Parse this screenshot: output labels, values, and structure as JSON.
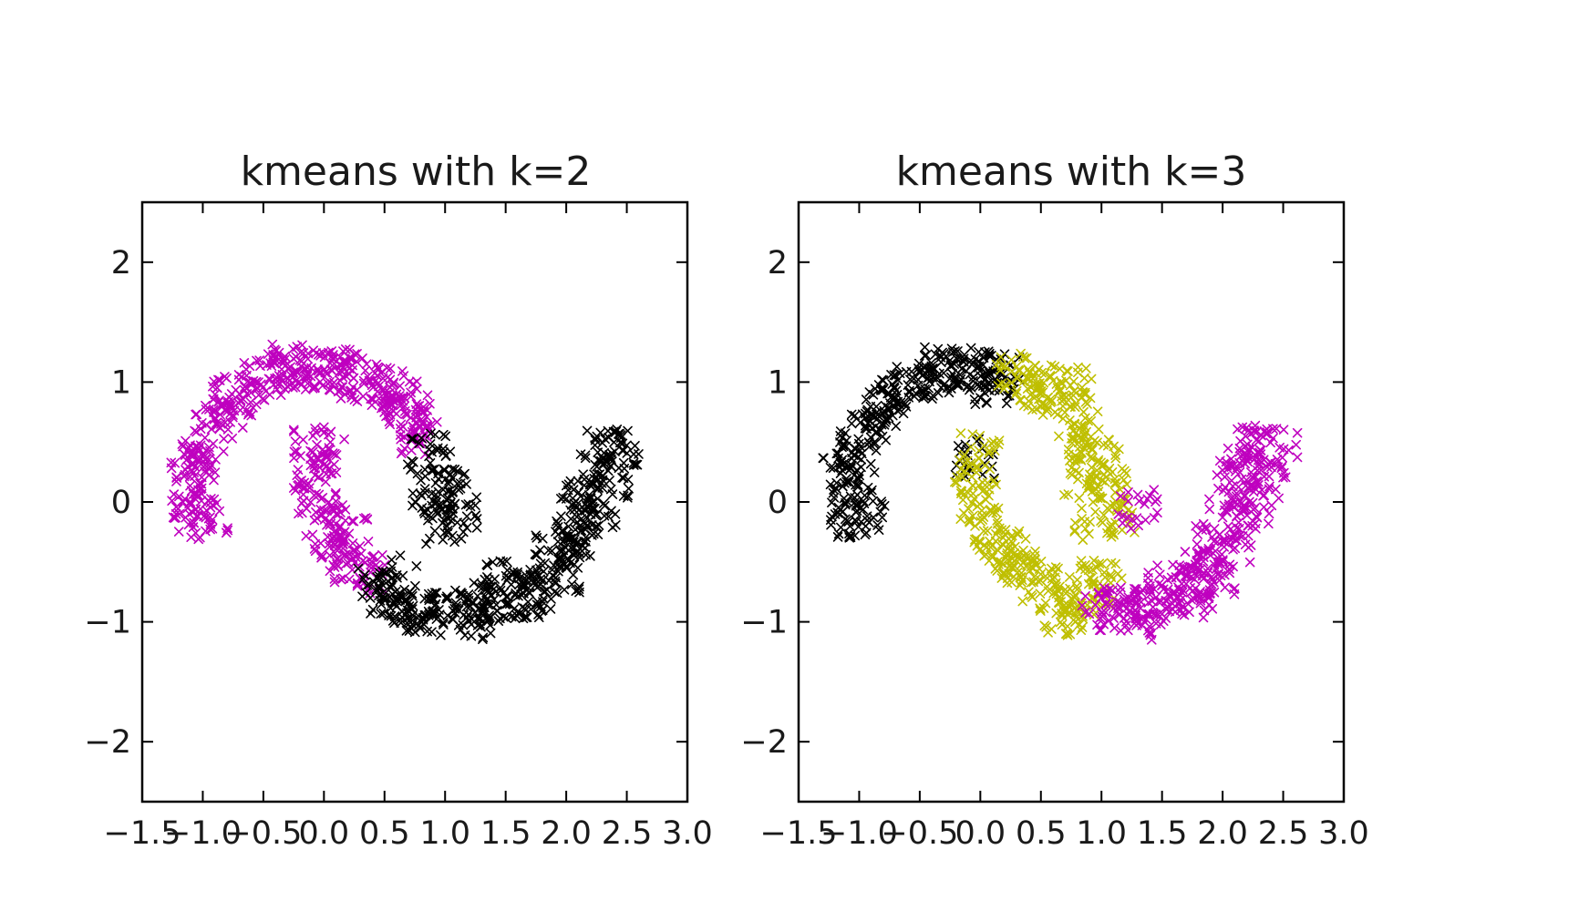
{
  "colors": {
    "black_cluster": "#000000",
    "magenta_cluster": "#bf00bf",
    "yellow_cluster": "#bfbf00",
    "axes": "#000000",
    "background": "#ffffff"
  },
  "chart_data": [
    {
      "type": "scatter",
      "marker": "x",
      "title": "kmeans with k=2",
      "xlabel": "",
      "ylabel": "",
      "xlim": [
        -1.5,
        3.0
      ],
      "ylim": [
        -2.5,
        2.5
      ],
      "xticks": [
        -1.5,
        -1.0,
        -0.5,
        0.0,
        0.5,
        1.0,
        1.5,
        2.0,
        2.5,
        3.0
      ],
      "xtick_labels": [
        "−1.5",
        "−1.0",
        "−0.5",
        "0.0",
        "0.5",
        "1.0",
        "1.5",
        "2.0",
        "2.5",
        "3.0"
      ],
      "yticks": [
        -2,
        -1,
        0,
        1,
        2
      ],
      "ytick_labels": [
        "−2",
        "−1",
        "0",
        "1",
        "2"
      ],
      "grid": false,
      "legend": "none",
      "series": [
        {
          "color": "magenta",
          "description_points": "upper moon left part and inner arc of lower moon",
          "points": [
            [
              -1.12,
              0.0
            ],
            [
              -1.05,
              0.22
            ],
            [
              -1.0,
              0.42
            ],
            [
              -0.92,
              0.6
            ],
            [
              -0.82,
              0.77
            ],
            [
              -0.7,
              0.9
            ],
            [
              -0.55,
              1.0
            ],
            [
              -0.4,
              1.06
            ],
            [
              -0.25,
              1.1
            ],
            [
              -0.1,
              1.1
            ],
            [
              0.05,
              1.07
            ],
            [
              0.2,
              1.03
            ],
            [
              0.35,
              0.98
            ],
            [
              0.5,
              0.92
            ],
            [
              0.62,
              0.85
            ],
            [
              0.72,
              0.72
            ],
            [
              0.8,
              0.55
            ],
            [
              -0.08,
              0.45
            ],
            [
              -0.1,
              0.2
            ],
            [
              -0.05,
              0.0
            ],
            [
              0.0,
              -0.15
            ],
            [
              0.08,
              -0.3
            ],
            [
              0.15,
              -0.42
            ],
            [
              0.25,
              -0.52
            ],
            [
              0.35,
              -0.6
            ],
            [
              -1.08,
              -0.12
            ],
            [
              -0.95,
              -0.15
            ],
            [
              -1.15,
              0.3
            ],
            [
              -0.75,
              0.85
            ],
            [
              -0.3,
              1.15
            ],
            [
              0.1,
              1.12
            ],
            [
              0.45,
              0.95
            ],
            [
              0.68,
              0.65
            ],
            [
              0.0,
              0.35
            ],
            [
              0.2,
              -0.2
            ]
          ]
        },
        {
          "color": "black",
          "description_points": "lower moon and right end of upper moon",
          "points": [
            [
              0.85,
              0.4
            ],
            [
              0.95,
              0.25
            ],
            [
              1.05,
              0.1
            ],
            [
              1.1,
              -0.1
            ],
            [
              1.0,
              -0.18
            ],
            [
              0.9,
              0.0
            ],
            [
              0.45,
              -0.7
            ],
            [
              0.55,
              -0.8
            ],
            [
              0.7,
              -0.9
            ],
            [
              0.85,
              -0.95
            ],
            [
              1.0,
              -0.9
            ],
            [
              1.2,
              -0.85
            ],
            [
              1.35,
              -0.82
            ],
            [
              1.5,
              -0.8
            ],
            [
              1.65,
              -0.72
            ],
            [
              1.8,
              -0.6
            ],
            [
              1.9,
              -0.45
            ],
            [
              2.0,
              -0.3
            ],
            [
              2.1,
              -0.1
            ],
            [
              2.15,
              0.1
            ],
            [
              2.2,
              0.3
            ],
            [
              2.3,
              0.45
            ],
            [
              2.45,
              0.45
            ],
            [
              2.35,
              0.2
            ],
            [
              2.25,
              -0.05
            ],
            [
              2.1,
              -0.35
            ],
            [
              1.95,
              -0.6
            ],
            [
              1.75,
              -0.8
            ],
            [
              1.25,
              -0.98
            ],
            [
              0.75,
              -0.98
            ],
            [
              0.6,
              -0.62
            ],
            [
              1.45,
              -0.65
            ]
          ]
        }
      ]
    },
    {
      "type": "scatter",
      "marker": "x",
      "title": "kmeans with k=3",
      "xlabel": "",
      "ylabel": "",
      "xlim": [
        -1.5,
        3.0
      ],
      "ylim": [
        -2.5,
        2.5
      ],
      "xticks": [
        -1.5,
        -1.0,
        -0.5,
        0.0,
        0.5,
        1.0,
        1.5,
        2.0,
        2.5,
        3.0
      ],
      "xtick_labels": [
        "−1.5",
        "−1.0",
        "−0.5",
        "0.0",
        "0.5",
        "1.0",
        "1.5",
        "2.0",
        "2.5",
        "3.0"
      ],
      "yticks": [
        -2,
        -1,
        0,
        1,
        2
      ],
      "ytick_labels": [
        "−2",
        "−1",
        "0",
        "1",
        "2"
      ],
      "grid": false,
      "legend": "none",
      "series": [
        {
          "color": "black",
          "description_points": "left half of upper moon",
          "points": [
            [
              -1.12,
              0.0
            ],
            [
              -1.05,
              0.22
            ],
            [
              -1.0,
              0.42
            ],
            [
              -0.92,
              0.6
            ],
            [
              -0.82,
              0.77
            ],
            [
              -0.7,
              0.9
            ],
            [
              -0.55,
              1.0
            ],
            [
              -0.4,
              1.06
            ],
            [
              -0.25,
              1.1
            ],
            [
              -0.1,
              1.12
            ],
            [
              0.05,
              1.1
            ],
            [
              0.15,
              1.05
            ],
            [
              -1.08,
              -0.12
            ],
            [
              -0.95,
              -0.15
            ],
            [
              -1.15,
              0.3
            ],
            [
              -0.75,
              0.85
            ],
            [
              -0.3,
              1.15
            ],
            [
              0.1,
              0.98
            ],
            [
              -0.05,
              0.35
            ]
          ]
        },
        {
          "color": "yellow",
          "description_points": "right half of upper moon and inner part of lower moon",
          "points": [
            [
              0.3,
              1.1
            ],
            [
              0.45,
              1.0
            ],
            [
              0.6,
              0.9
            ],
            [
              0.72,
              0.75
            ],
            [
              0.82,
              0.6
            ],
            [
              0.9,
              0.45
            ],
            [
              1.0,
              0.3
            ],
            [
              1.05,
              0.1
            ],
            [
              1.1,
              -0.1
            ],
            [
              0.95,
              -0.18
            ],
            [
              0.85,
              0.2
            ],
            [
              0.5,
              0.85
            ],
            [
              0.0,
              0.4
            ],
            [
              -0.05,
              0.2
            ],
            [
              0.0,
              0.0
            ],
            [
              0.05,
              -0.2
            ],
            [
              0.12,
              -0.35
            ],
            [
              0.22,
              -0.48
            ],
            [
              0.35,
              -0.6
            ],
            [
              0.5,
              -0.7
            ],
            [
              0.65,
              -0.78
            ],
            [
              0.8,
              -0.85
            ],
            [
              0.9,
              -0.7
            ],
            [
              1.0,
              -0.65
            ],
            [
              0.7,
              -0.95
            ],
            [
              0.3,
              -0.4
            ],
            [
              0.75,
              0.95
            ]
          ]
        },
        {
          "color": "magenta",
          "description_points": "right portion of lower moon",
          "points": [
            [
              1.0,
              -0.85
            ],
            [
              1.15,
              -0.9
            ],
            [
              1.3,
              -0.88
            ],
            [
              1.45,
              -0.85
            ],
            [
              1.6,
              -0.78
            ],
            [
              1.75,
              -0.65
            ],
            [
              1.85,
              -0.5
            ],
            [
              1.95,
              -0.35
            ],
            [
              2.05,
              -0.15
            ],
            [
              2.1,
              0.05
            ],
            [
              2.15,
              0.25
            ],
            [
              2.2,
              0.45
            ],
            [
              2.35,
              0.48
            ],
            [
              2.45,
              0.45
            ],
            [
              2.35,
              0.2
            ],
            [
              2.25,
              -0.05
            ],
            [
              2.1,
              -0.35
            ],
            [
              1.95,
              -0.6
            ],
            [
              1.75,
              -0.8
            ],
            [
              1.25,
              -0.98
            ],
            [
              1.3,
              -0.05
            ],
            [
              1.55,
              -0.7
            ]
          ]
        }
      ]
    }
  ]
}
